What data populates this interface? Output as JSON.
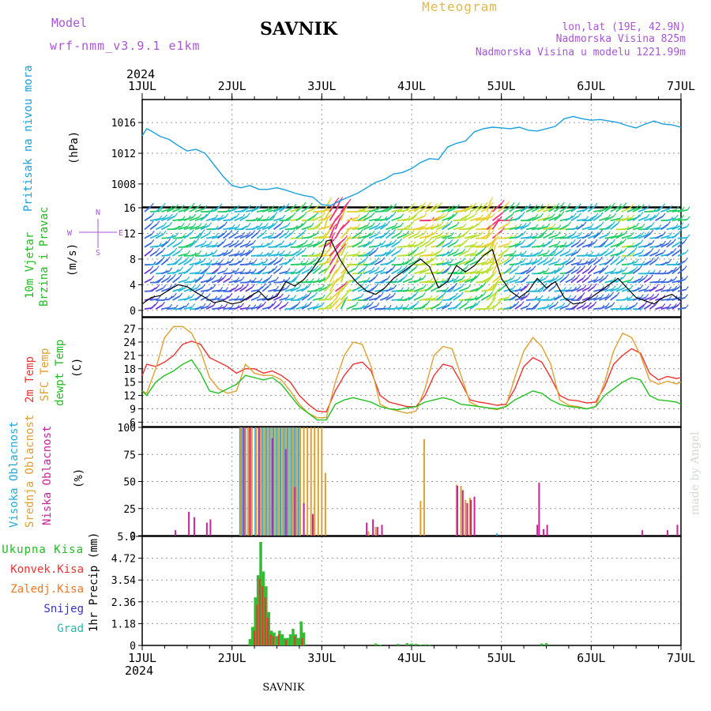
{
  "header": {
    "model_label": "Model",
    "model_name": "wrf-nmm_v3.9.1 e1km",
    "station": "SAVNIK",
    "product": "Meteogram",
    "coords": "lon,lat (19E, 42.9N)",
    "elevation": "Nadmorska Visina 825m",
    "model_elevation": "Nadmorska Visina u modelu 1221.99m",
    "year": "2024",
    "footer_station": "SAVNIK",
    "credit": "made by Angel"
  },
  "colors": {
    "pressure": "#1a9fe0",
    "wind_speed": "#000000",
    "wind_label": "#22bb22",
    "t2m": "#ee3333",
    "sfc": "#e0a030",
    "dewpt": "#22c022",
    "high_cloud": "#22aadd",
    "mid_cloud": "#dda030",
    "low_cloud": "#cc2299",
    "total_precip": "#33bb33",
    "convective": "#ee3333",
    "frozen": "#ee7722",
    "snow": "#3333cc",
    "hail": "#22bbaa",
    "grid": "#999999"
  },
  "chart_data": [
    {
      "type": "line",
      "panel": "pressure",
      "ylabel_1": "Pritisak na nivou mora",
      "ylabel_2": "(hPa)",
      "x_ticks": [
        "1JUL",
        "2JUL",
        "3JUL",
        "4JUL",
        "5JUL",
        "6JUL",
        "7JUL"
      ],
      "y_ticks": [
        "1008",
        "1012",
        "1016"
      ],
      "ylim": [
        1005,
        1019
      ],
      "grid": true,
      "series": [
        {
          "key": "pressure",
          "x": [
            0,
            0.05,
            0.1,
            0.2,
            0.3,
            0.4,
            0.5,
            0.6,
            0.7,
            0.8,
            0.9,
            1.0,
            1.1,
            1.2,
            1.3,
            1.4,
            1.5,
            1.6,
            1.7,
            1.8,
            1.9,
            2.0,
            2.1,
            2.2,
            2.3,
            2.4,
            2.5,
            2.6,
            2.7,
            2.8,
            2.9,
            3.0,
            3.1,
            3.2,
            3.3,
            3.4,
            3.5,
            3.6,
            3.7,
            3.8,
            3.9,
            4.0,
            4.1,
            4.2,
            4.3,
            4.4,
            4.5,
            4.6,
            4.7,
            4.8,
            4.9,
            5.0,
            5.1,
            5.2,
            5.3,
            5.4,
            5.5,
            5.6,
            5.7,
            5.8,
            5.9,
            6.0
          ],
          "values": [
            1014.3,
            1015.2,
            1014.9,
            1014.2,
            1013.8,
            1013.0,
            1012.3,
            1012.5,
            1012.0,
            1010.5,
            1009.0,
            1007.8,
            1007.5,
            1007.8,
            1007.3,
            1007.3,
            1007.5,
            1007.2,
            1006.8,
            1006.5,
            1006.3,
            1005.3,
            1005.2,
            1005.8,
            1006.3,
            1006.8,
            1007.5,
            1008.2,
            1008.6,
            1009.3,
            1009.5,
            1010.0,
            1010.8,
            1011.3,
            1011.2,
            1012.8,
            1013.3,
            1013.6,
            1014.8,
            1015.2,
            1015.4,
            1015.3,
            1015.2,
            1015.4,
            1015.0,
            1014.9,
            1015.2,
            1015.5,
            1016.5,
            1016.8,
            1016.5,
            1016.3,
            1016.4,
            1016.2,
            1016.0,
            1015.6,
            1015.3,
            1015.8,
            1016.2,
            1015.8,
            1015.7,
            1015.4
          ]
        }
      ]
    },
    {
      "type": "line",
      "panel": "wind",
      "ylabel_1": "10m Vjetar",
      "ylabel_2": "Brzina i Pravac",
      "ylabel_3": "(m/s)",
      "compass": [
        "N",
        "E",
        "S",
        "W"
      ],
      "y_ticks": [
        "0",
        "4",
        "8",
        "12",
        "16"
      ],
      "ylim": [
        -1,
        16
      ],
      "grid": true,
      "series": [
        {
          "key": "wind_speed",
          "x": [
            0,
            0.1,
            0.2,
            0.3,
            0.4,
            0.5,
            0.6,
            0.7,
            0.8,
            0.9,
            1.0,
            1.1,
            1.2,
            1.3,
            1.4,
            1.5,
            1.6,
            1.7,
            1.8,
            1.9,
            2.0,
            2.05,
            2.1,
            2.2,
            2.3,
            2.4,
            2.5,
            2.6,
            2.7,
            2.8,
            2.9,
            3.0,
            3.1,
            3.2,
            3.3,
            3.4,
            3.5,
            3.6,
            3.7,
            3.8,
            3.9,
            4.0,
            4.1,
            4.2,
            4.3,
            4.4,
            4.5,
            4.6,
            4.7,
            4.8,
            4.9,
            5.0,
            5.1,
            5.2,
            5.3,
            5.4,
            5.5,
            5.6,
            5.7,
            5.8,
            5.9,
            6.0
          ],
          "values": [
            1.0,
            2.0,
            2.3,
            3.2,
            4.0,
            3.7,
            2.8,
            2.0,
            1.2,
            1.5,
            1.0,
            1.3,
            2.2,
            3.0,
            1.6,
            2.2,
            4.5,
            3.8,
            4.8,
            6.5,
            8.5,
            10.8,
            11.0,
            8.0,
            5.8,
            4.2,
            3.0,
            2.5,
            3.5,
            5.0,
            6.0,
            7.0,
            8.0,
            6.8,
            3.5,
            4.5,
            7.0,
            6.0,
            7.0,
            8.5,
            9.5,
            5.0,
            3.0,
            2.0,
            3.0,
            5.0,
            3.5,
            4.5,
            2.0,
            1.0,
            1.2,
            2.0,
            3.0,
            4.0,
            5.0,
            3.5,
            2.0,
            1.5,
            1.0,
            2.0,
            2.5,
            1.5
          ]
        }
      ]
    },
    {
      "type": "line",
      "panel": "temperature",
      "ylabel_1": "2m Temp",
      "ylabel_2": "SFC Temp",
      "ylabel_3": "dewpt Temp",
      "ylabel_4": "(C)",
      "y_ticks": [
        "6",
        "9",
        "12",
        "15",
        "18",
        "21",
        "24",
        "27"
      ],
      "ylim": [
        5,
        29.5
      ],
      "grid": true,
      "series": [
        {
          "key": "t2m",
          "x": [
            0,
            0.05,
            0.15,
            0.25,
            0.35,
            0.45,
            0.55,
            0.65,
            0.75,
            0.85,
            0.95,
            1.05,
            1.15,
            1.25,
            1.35,
            1.45,
            1.55,
            1.65,
            1.75,
            1.85,
            1.95,
            2.05,
            2.15,
            2.25,
            2.35,
            2.45,
            2.55,
            2.65,
            2.75,
            2.85,
            2.95,
            3.05,
            3.15,
            3.25,
            3.35,
            3.45,
            3.55,
            3.65,
            3.75,
            3.85,
            3.95,
            4.05,
            4.15,
            4.25,
            4.35,
            4.45,
            4.55,
            4.65,
            4.75,
            4.85,
            4.95,
            5.05,
            5.15,
            5.25,
            5.35,
            5.45,
            5.55,
            5.65,
            5.75,
            5.85,
            5.95,
            6.0
          ],
          "values": [
            16.5,
            19,
            18.5,
            19.5,
            21,
            23.5,
            24.2,
            23.5,
            20.5,
            19.5,
            18.5,
            17,
            18,
            18,
            17,
            17.5,
            16.5,
            15,
            12,
            10,
            8.5,
            8.3,
            13,
            16.5,
            19,
            19.5,
            17.5,
            12,
            10.5,
            10,
            9.5,
            9.5,
            12,
            16.5,
            19,
            18.5,
            15,
            11,
            10.5,
            10.2,
            9.8,
            10,
            13.5,
            18.5,
            20.5,
            19.5,
            16,
            12,
            11,
            10.8,
            10.3,
            10.5,
            14,
            19,
            21,
            22.5,
            21.5,
            17,
            15.5,
            16.3,
            15.8,
            16
          ]
        },
        {
          "key": "sfc",
          "x": [
            0,
            0.05,
            0.15,
            0.25,
            0.35,
            0.45,
            0.55,
            0.65,
            0.75,
            0.85,
            0.95,
            1.05,
            1.15,
            1.25,
            1.35,
            1.45,
            1.55,
            1.65,
            1.75,
            1.85,
            1.95,
            2.05,
            2.15,
            2.25,
            2.35,
            2.45,
            2.55,
            2.65,
            2.75,
            2.85,
            2.95,
            3.05,
            3.15,
            3.25,
            3.35,
            3.45,
            3.55,
            3.65,
            3.75,
            3.85,
            3.95,
            4.05,
            4.15,
            4.25,
            4.35,
            4.45,
            4.55,
            4.65,
            4.75,
            4.85,
            4.95,
            5.05,
            5.15,
            5.25,
            5.35,
            5.45,
            5.55,
            5.65,
            5.75,
            5.85,
            5.95,
            6.0
          ],
          "values": [
            13,
            12.5,
            18,
            25,
            27.5,
            27.5,
            26,
            22,
            16,
            13.5,
            12.5,
            13,
            19,
            17,
            16.5,
            16.5,
            15.5,
            13,
            10,
            8,
            7,
            7,
            15,
            21,
            24,
            23.5,
            18.5,
            10,
            9,
            8.5,
            8,
            8.5,
            13.5,
            21,
            23,
            22.5,
            16.5,
            10.5,
            9.5,
            9.2,
            8.8,
            9.5,
            16,
            22,
            25,
            23,
            19,
            11,
            9.8,
            9.5,
            9,
            9.5,
            15,
            22,
            26,
            25,
            21,
            15.5,
            14.5,
            15.2,
            14.6,
            15
          ]
        },
        {
          "key": "dewpt",
          "x": [
            0,
            0.05,
            0.15,
            0.25,
            0.35,
            0.45,
            0.55,
            0.65,
            0.75,
            0.85,
            0.95,
            1.05,
            1.15,
            1.25,
            1.35,
            1.45,
            1.55,
            1.65,
            1.75,
            1.85,
            1.95,
            2.05,
            2.15,
            2.25,
            2.35,
            2.45,
            2.55,
            2.65,
            2.75,
            2.85,
            2.95,
            3.05,
            3.15,
            3.25,
            3.35,
            3.45,
            3.55,
            3.65,
            3.75,
            3.85,
            3.95,
            4.05,
            4.15,
            4.25,
            4.35,
            4.45,
            4.55,
            4.65,
            4.75,
            4.85,
            4.95,
            5.05,
            5.15,
            5.25,
            5.35,
            5.45,
            5.55,
            5.65,
            5.75,
            5.85,
            5.95,
            6.0
          ],
          "values": [
            13,
            12,
            15,
            16.5,
            17.5,
            19,
            20,
            17,
            13,
            12.5,
            13.5,
            14.5,
            16.5,
            16,
            15.5,
            16,
            14.5,
            12,
            9.5,
            8,
            6.5,
            6.5,
            10,
            11,
            11.5,
            11,
            10.5,
            9.5,
            9,
            8.8,
            9.2,
            9.5,
            10.5,
            11,
            11.5,
            11,
            10,
            9.8,
            9.5,
            9.2,
            9,
            9.5,
            11,
            12,
            13,
            12.5,
            11,
            10,
            9.5,
            9.3,
            9,
            9.5,
            12,
            13.5,
            15,
            16,
            15.5,
            12,
            11,
            10.8,
            10.5,
            10
          ]
        }
      ]
    },
    {
      "type": "bar",
      "panel": "cloud",
      "ylabel_1": "Visoka Oblacnost",
      "ylabel_2": "Srednja Oblacnost",
      "ylabel_3": "Niska Oblacnost",
      "ylabel_4": "(%)",
      "y_ticks": [
        "0",
        "25",
        "50",
        "75",
        "100"
      ],
      "ylim": [
        0,
        100
      ],
      "grid": true,
      "series": [
        {
          "key": "high_cloud",
          "x": [
            1.09,
            1.11,
            1.15,
            1.18,
            1.22,
            1.26,
            1.3,
            1.34,
            1.38,
            1.42,
            1.46,
            1.5,
            1.54,
            1.58,
            1.62,
            1.66,
            1.7,
            1.74,
            3.95
          ],
          "values": [
            100,
            100,
            100,
            100,
            100,
            100,
            100,
            100,
            100,
            100,
            100,
            100,
            100,
            100,
            100,
            100,
            100,
            100,
            2
          ]
        },
        {
          "key": "mid_cloud",
          "x": [
            1.1,
            1.14,
            1.18,
            1.22,
            1.27,
            1.32,
            1.36,
            1.4,
            1.44,
            1.48,
            1.52,
            1.56,
            1.6,
            1.64,
            1.68,
            1.72,
            1.76,
            1.8,
            1.84,
            1.88,
            1.92,
            1.96,
            2.0,
            2.04,
            2.52,
            2.6,
            3.1,
            3.14,
            3.5,
            3.55,
            3.6,
            3.65
          ],
          "values": [
            100,
            100,
            100,
            100,
            100,
            100,
            100,
            100,
            100,
            100,
            100,
            100,
            100,
            100,
            100,
            100,
            100,
            100,
            100,
            100,
            100,
            100,
            100,
            58,
            4,
            8,
            32,
            89,
            47,
            46,
            33,
            35
          ]
        },
        {
          "key": "low_cloud",
          "x": [
            0.37,
            0.52,
            0.58,
            0.72,
            0.76,
            1.13,
            1.2,
            1.3,
            1.45,
            1.6,
            1.7,
            1.8,
            1.9,
            2.5,
            2.57,
            2.62,
            2.67,
            3.51,
            3.57,
            3.62,
            3.66,
            3.7,
            4.4,
            4.42,
            4.47,
            4.51,
            5.57,
            5.85,
            5.96
          ],
          "values": [
            5,
            22,
            17,
            12,
            15,
            100,
            100,
            100,
            90,
            80,
            45,
            30,
            20,
            12,
            15,
            8,
            10,
            46,
            42,
            30,
            33,
            36,
            10,
            49,
            6,
            10,
            5,
            5,
            10
          ]
        }
      ]
    },
    {
      "type": "bar",
      "panel": "precip",
      "legend": [
        "Ukupna Kisa",
        "Konvek.Kisa",
        "Zaledj.Kisa",
        "Snijeg",
        "Grad"
      ],
      "ylabel_1": "1hr Precip (mm)",
      "x_ticks_bottom": [
        "1JUL",
        "2JUL",
        "3JUL",
        "4JUL",
        "5JUL",
        "6JUL",
        "7JUL"
      ],
      "y_ticks": [
        "0",
        "1.18",
        "2.36",
        "3.54",
        "4.72",
        "5.9"
      ],
      "ylim": [
        0,
        5.9
      ],
      "grid": true,
      "series": [
        {
          "key": "total_precip",
          "x": [
            1.2,
            1.23,
            1.26,
            1.29,
            1.32,
            1.35,
            1.38,
            1.41,
            1.44,
            1.47,
            1.5,
            1.53,
            1.56,
            1.59,
            1.62,
            1.65,
            1.68,
            1.71,
            1.74,
            1.77,
            1.8,
            2.6,
            2.65,
            2.85,
            2.95,
            3.0,
            3.05,
            3.1,
            3.15,
            3.2,
            4.45,
            4.5
          ],
          "values": [
            0.35,
            1.0,
            2.6,
            3.8,
            5.6,
            4.0,
            3.2,
            1.8,
            0.8,
            0.7,
            0.5,
            0.8,
            0.6,
            0.4,
            0.4,
            0.6,
            0.9,
            0.6,
            0.4,
            1.3,
            0.7,
            0.1,
            0.05,
            0.08,
            0.12,
            0.1,
            0.08,
            0.05,
            0.06,
            0.05,
            0.1,
            0.12
          ]
        },
        {
          "key": "convective",
          "x": [
            1.25,
            1.28,
            1.31,
            1.34,
            1.37,
            1.4,
            1.43,
            1.46,
            1.52,
            1.6,
            1.7,
            1.78
          ],
          "values": [
            0.8,
            2.2,
            3.6,
            3.2,
            2.6,
            1.5,
            0.6,
            0.5,
            0.6,
            0.3,
            0.5,
            0.4
          ]
        }
      ]
    }
  ]
}
